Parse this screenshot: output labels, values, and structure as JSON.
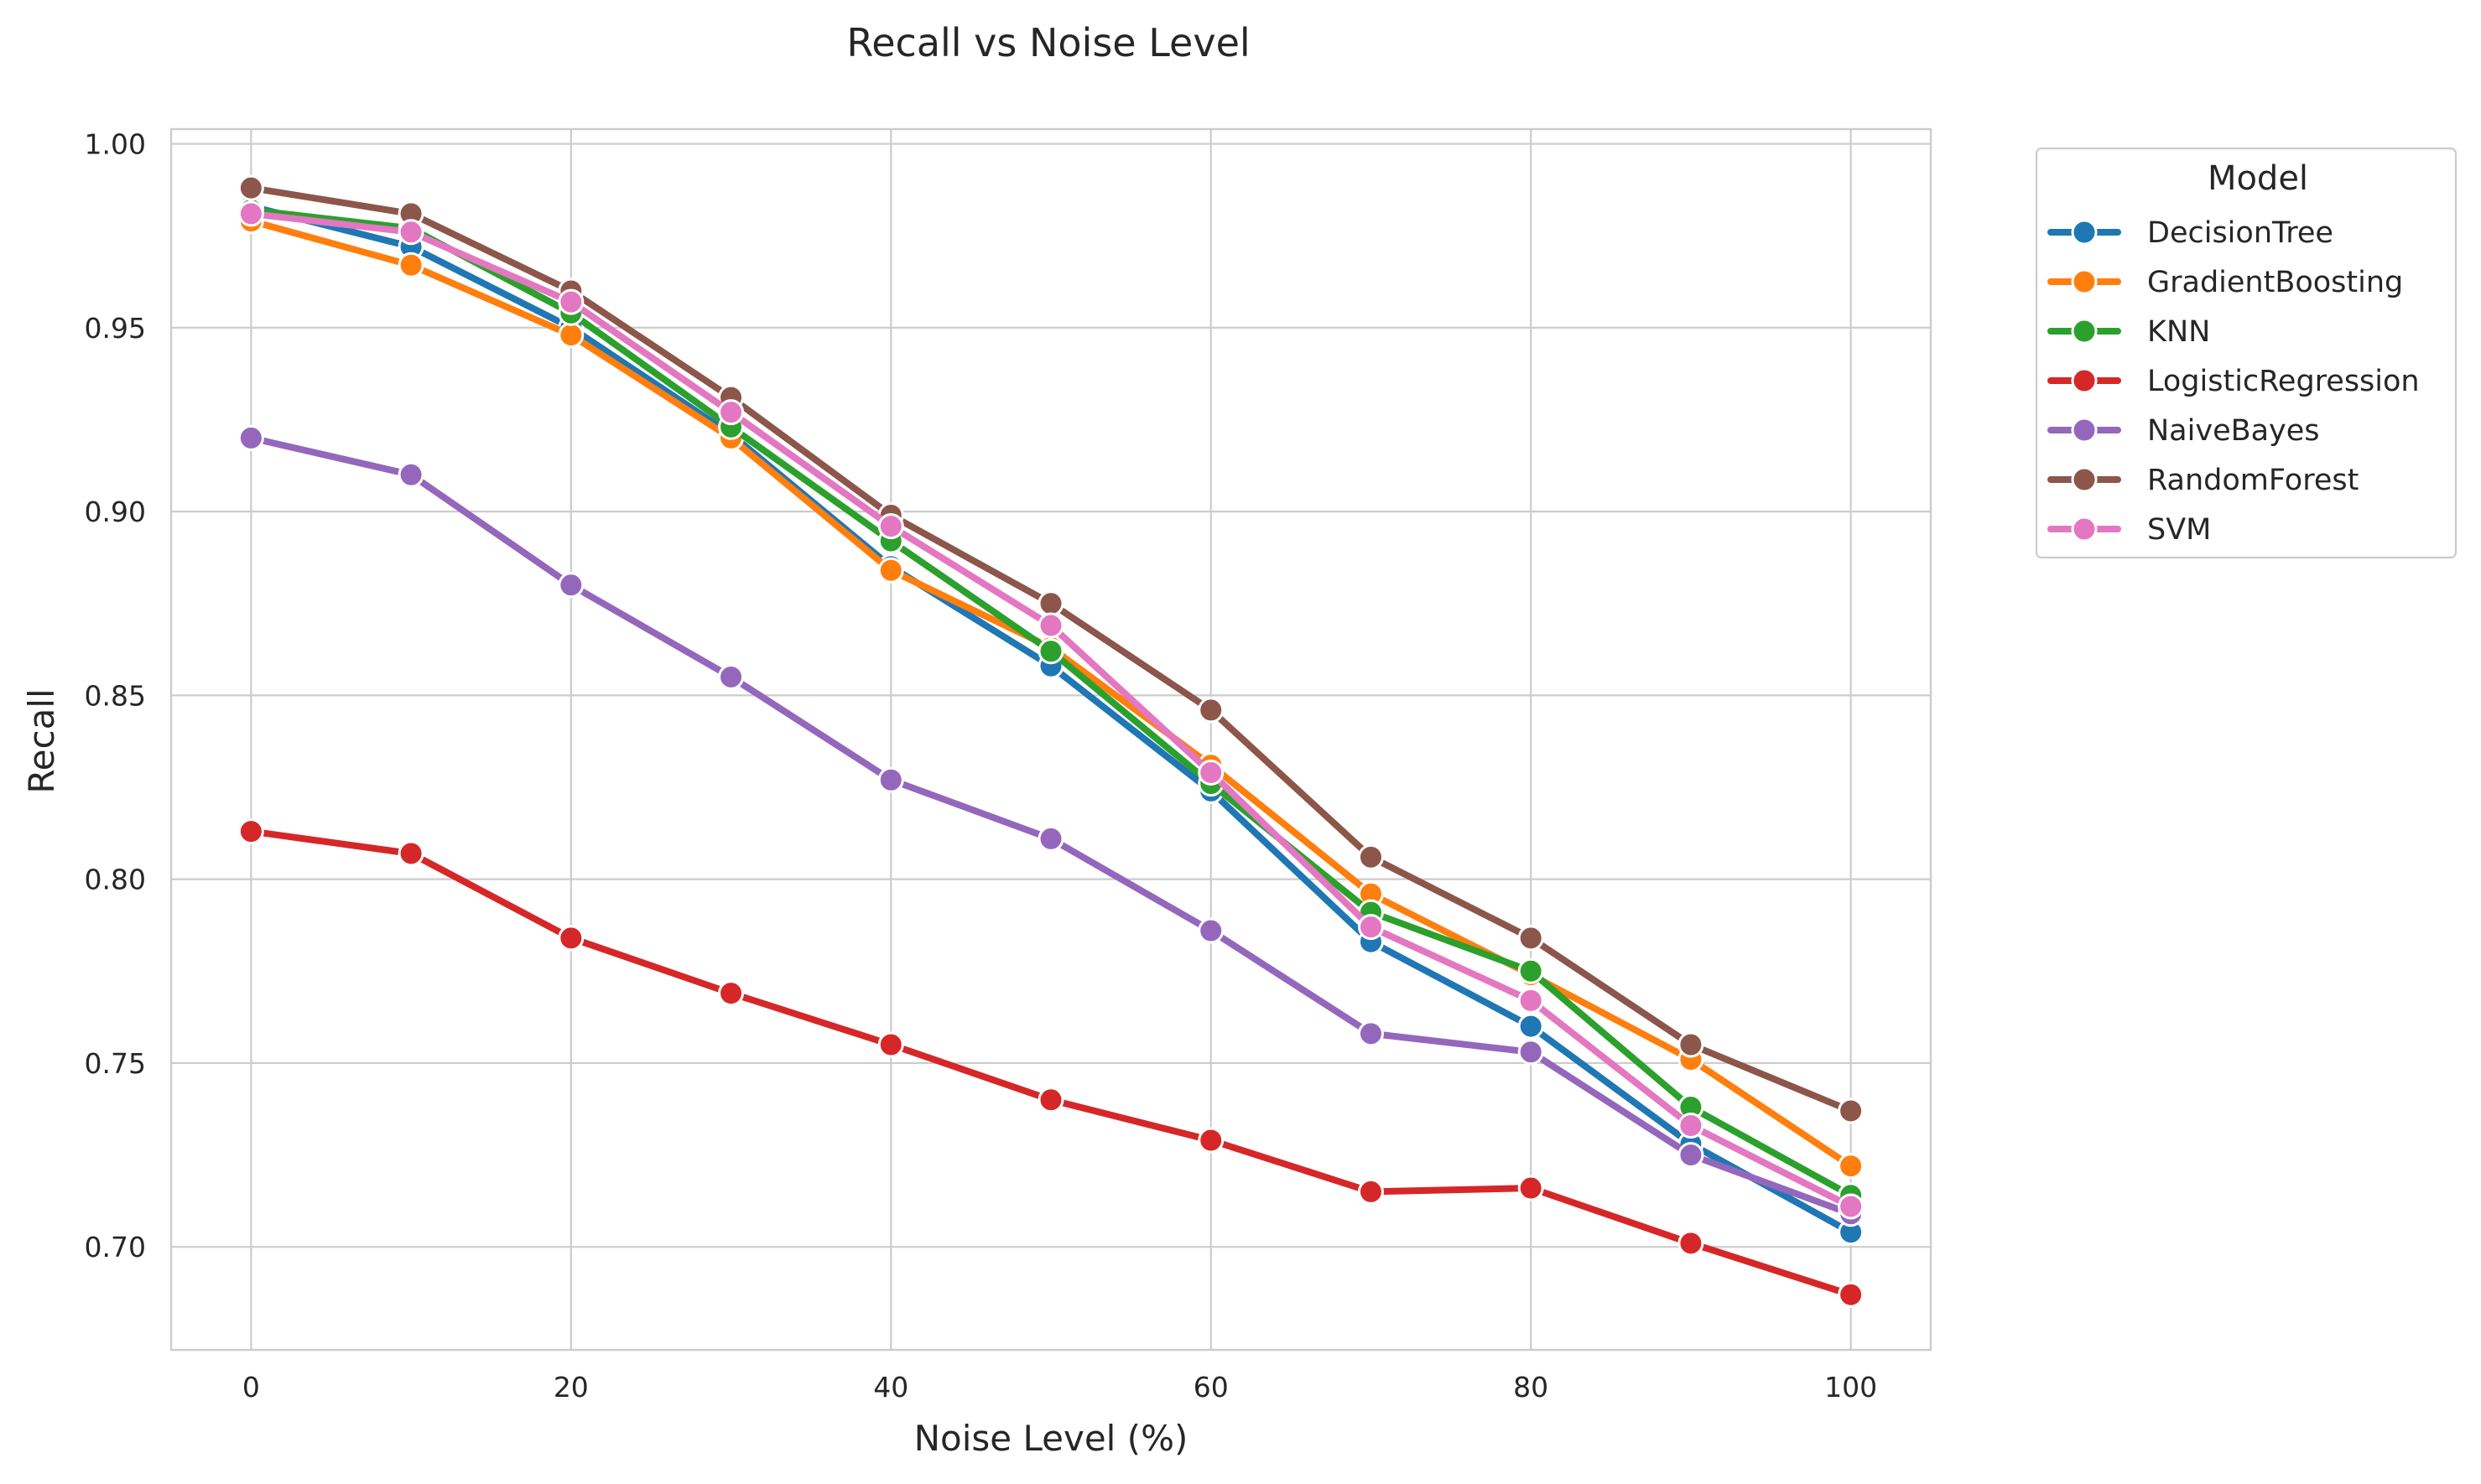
{
  "chart_data": {
    "type": "line",
    "title": "Recall vs Noise Level",
    "xlabel": "Noise Level (%)",
    "ylabel": "Recall",
    "xlim": [
      -5,
      105
    ],
    "ylim": [
      0.672,
      1.004
    ],
    "xticks": [
      0,
      20,
      40,
      60,
      80,
      100
    ],
    "xtick_labels": [
      "0",
      "20",
      "40",
      "60",
      "80",
      "100"
    ],
    "yticks": [
      0.7,
      0.75,
      0.8,
      0.85,
      0.9,
      0.95,
      1.0
    ],
    "ytick_labels": [
      "0.70",
      "0.75",
      "0.80",
      "0.85",
      "0.90",
      "0.95",
      "1.00"
    ],
    "grid": true,
    "legend": {
      "title": "Model",
      "position": "outside-right-top"
    },
    "x": [
      0,
      10,
      20,
      30,
      40,
      50,
      60,
      70,
      80,
      90,
      100
    ],
    "series": [
      {
        "name": "DecisionTree",
        "color": "#1f77b4",
        "values": [
          0.983,
          0.972,
          0.95,
          0.921,
          0.885,
          0.858,
          0.824,
          0.783,
          0.76,
          0.728,
          0.704
        ]
      },
      {
        "name": "GradientBoosting",
        "color": "#ff7f0e",
        "values": [
          0.979,
          0.967,
          0.948,
          0.92,
          0.884,
          0.863,
          0.831,
          0.796,
          0.774,
          0.751,
          0.722
        ]
      },
      {
        "name": "KNN",
        "color": "#2ca02c",
        "values": [
          0.982,
          0.977,
          0.954,
          0.923,
          0.892,
          0.862,
          0.826,
          0.791,
          0.775,
          0.738,
          0.714
        ]
      },
      {
        "name": "LogisticRegression",
        "color": "#d62728",
        "values": [
          0.813,
          0.807,
          0.784,
          0.769,
          0.755,
          0.74,
          0.729,
          0.715,
          0.716,
          0.701,
          0.687
        ]
      },
      {
        "name": "NaiveBayes",
        "color": "#9467bd",
        "values": [
          0.92,
          0.91,
          0.88,
          0.855,
          0.827,
          0.811,
          0.786,
          0.758,
          0.753,
          0.725,
          0.709
        ]
      },
      {
        "name": "RandomForest",
        "color": "#8c564b",
        "values": [
          0.988,
          0.981,
          0.96,
          0.931,
          0.899,
          0.875,
          0.846,
          0.806,
          0.784,
          0.755,
          0.737
        ]
      },
      {
        "name": "SVM",
        "color": "#e377c2",
        "values": [
          0.981,
          0.976,
          0.957,
          0.927,
          0.896,
          0.869,
          0.829,
          0.787,
          0.767,
          0.733,
          0.711
        ]
      }
    ]
  }
}
